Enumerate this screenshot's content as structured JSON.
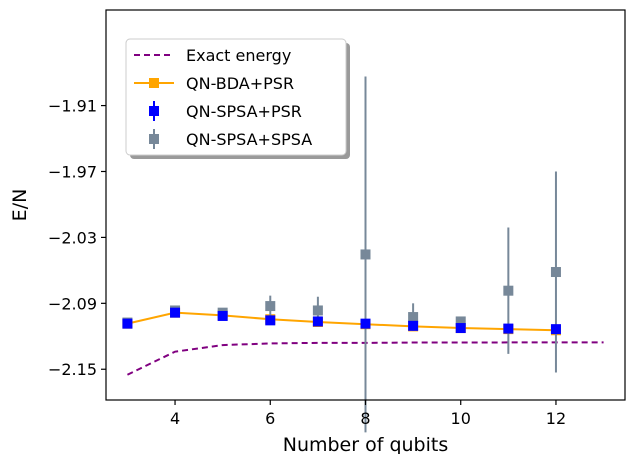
{
  "chart_data": {
    "type": "line",
    "xlabel": "Number of qubits",
    "ylabel": "E/N",
    "xlim": [
      2.55,
      13.45
    ],
    "ylim": [
      -2.178,
      -1.823
    ],
    "xticks": [
      4,
      6,
      8,
      10,
      12
    ],
    "xtick_labels": [
      "4",
      "6",
      "8",
      "10",
      "12"
    ],
    "yticks": [
      -1.91,
      -1.97,
      -2.03,
      -2.09,
      -2.15
    ],
    "ytick_labels": [
      "−1.91",
      "−1.97",
      "−2.03",
      "−2.09",
      "−2.15"
    ],
    "grid": false,
    "legend_position": "upper-left",
    "series": [
      {
        "name": "Exact energy",
        "style": "dashed-line",
        "color": "#800080",
        "x": [
          3,
          4,
          5,
          6,
          7,
          8,
          9,
          10,
          11,
          12,
          13
        ],
        "y": [
          -2.155,
          -2.134,
          -2.128,
          -2.1265,
          -2.126,
          -2.126,
          -2.1257,
          -2.1257,
          -2.1256,
          -2.1256,
          -2.1256
        ]
      },
      {
        "name": "QN-BDA+PSR",
        "style": "line-square",
        "color": "#FFA500",
        "x": [
          3,
          4,
          5,
          6,
          7,
          8,
          9,
          10,
          11,
          12
        ],
        "y": [
          -2.1085,
          -2.0985,
          -2.101,
          -2.1045,
          -2.107,
          -2.109,
          -2.111,
          -2.1125,
          -2.1135,
          -2.1145
        ]
      },
      {
        "name": "QN-SPSA+PSR",
        "style": "errorbar-square",
        "color": "#0000FF",
        "x": [
          3,
          4,
          5,
          6,
          7,
          8,
          9,
          10,
          11,
          12
        ],
        "y": [
          -2.1085,
          -2.0985,
          -2.1015,
          -2.1055,
          -2.1065,
          -2.1085,
          -2.1105,
          -2.1125,
          -2.113,
          -2.1135
        ],
        "err": [
          0.002,
          0.002,
          0.002,
          0.002,
          0.002,
          0.002,
          0.002,
          0.002,
          0.002,
          0.002
        ]
      },
      {
        "name": "QN-SPSA+SPSA",
        "style": "errorbar-square",
        "color": "#778899",
        "x": [
          3,
          4,
          5,
          6,
          7,
          8,
          9,
          10,
          11,
          12
        ],
        "y": [
          -2.1075,
          -2.0965,
          -2.0985,
          -2.0925,
          -2.0965,
          -2.0455,
          -2.1025,
          -2.1065,
          -2.0785,
          -2.0615
        ],
        "err": [
          0.001,
          0.001,
          0.002,
          0.0095,
          0.0125,
          0.162,
          0.0125,
          0.0045,
          0.0575,
          0.0915
        ]
      }
    ]
  }
}
